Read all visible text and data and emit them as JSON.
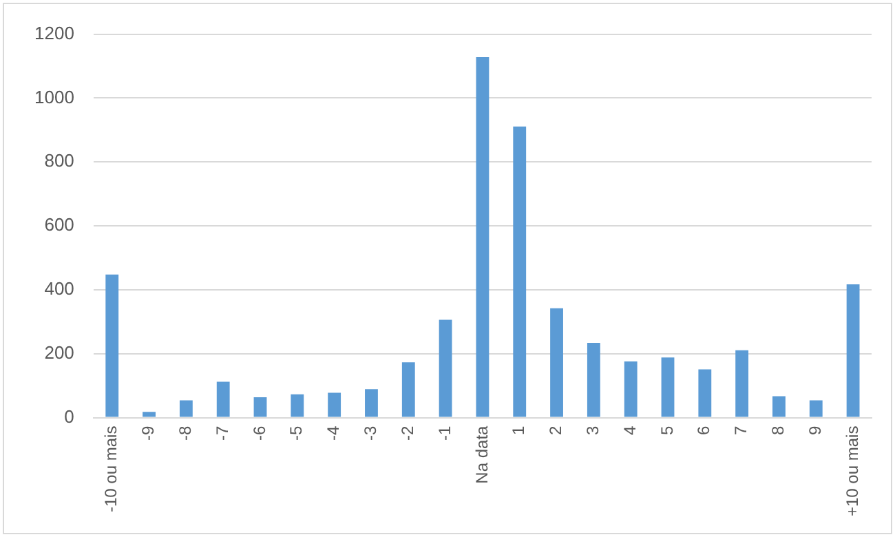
{
  "chart_data": {
    "type": "bar",
    "categories": [
      "-10 ou mais",
      "-9",
      "-8",
      "-7",
      "-6",
      "-5",
      "-4",
      "-3",
      "-2",
      "-1",
      "Na data",
      "1",
      "2",
      "3",
      "4",
      "5",
      "6",
      "7",
      "8",
      "9",
      "+10 ou mais"
    ],
    "values": [
      448,
      18,
      54,
      112,
      64,
      73,
      78,
      89,
      173,
      306,
      1128,
      911,
      342,
      234,
      176,
      188,
      151,
      211,
      67,
      54,
      417
    ],
    "color": "#5b9bd5",
    "ylim": [
      0,
      1200
    ],
    "yticks": [
      0,
      200,
      400,
      600,
      800,
      1000,
      1200
    ],
    "grid": "y",
    "legend": false
  }
}
